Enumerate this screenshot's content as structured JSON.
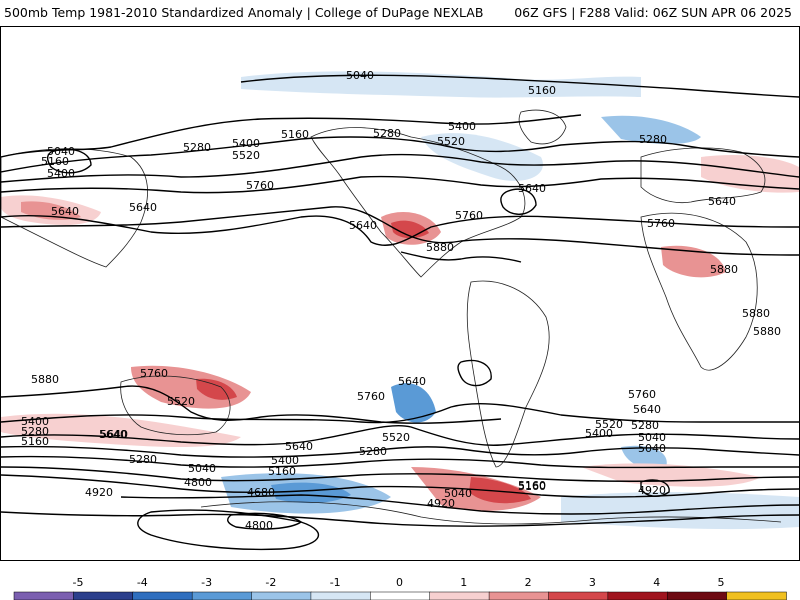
{
  "header": {
    "left_title": "500mb Temp 1981-2010 Standardized Anomaly | College of DuPage NEXLAB",
    "right_title": "06Z GFS | F288 Valid: 06Z SUN APR 06 2025"
  },
  "contour_labels": [
    "5040",
    "5160",
    "5040",
    "5160",
    "5400",
    "5280",
    "5400",
    "5520",
    "5280",
    "5400",
    "5520",
    "5280",
    "5160",
    "5640",
    "5760",
    "5640",
    "5640",
    "5760",
    "5880",
    "5640",
    "5760",
    "5640",
    "5880",
    "5880",
    "5880",
    "5880",
    "5760",
    "5640",
    "5520",
    "5760",
    "5640",
    "5760",
    "5640",
    "5520",
    "5400",
    "5280",
    "5040",
    "5400",
    "5280",
    "5160",
    "5640",
    "5280",
    "5520",
    "5640",
    "5400",
    "5160",
    "5280",
    "5040",
    "5160",
    "5040",
    "4920",
    "4800",
    "4680",
    "4800",
    "4920",
    "5040",
    "4920",
    "5160"
  ],
  "colorbar": {
    "ticks": [
      "-5",
      "-4",
      "-3",
      "-2",
      "-1",
      "0",
      "1",
      "2",
      "3",
      "4",
      "5"
    ],
    "colors": [
      "#7b5fb0",
      "#2b3f8c",
      "#2f6fbf",
      "#5a9ad6",
      "#9bc4e8",
      "#d6e6f4",
      "#ffffff",
      "#f7d0d0",
      "#e89393",
      "#d4474b",
      "#a0141e",
      "#6e0a12",
      "#f0c020"
    ],
    "unit": "standardized anomaly"
  }
}
